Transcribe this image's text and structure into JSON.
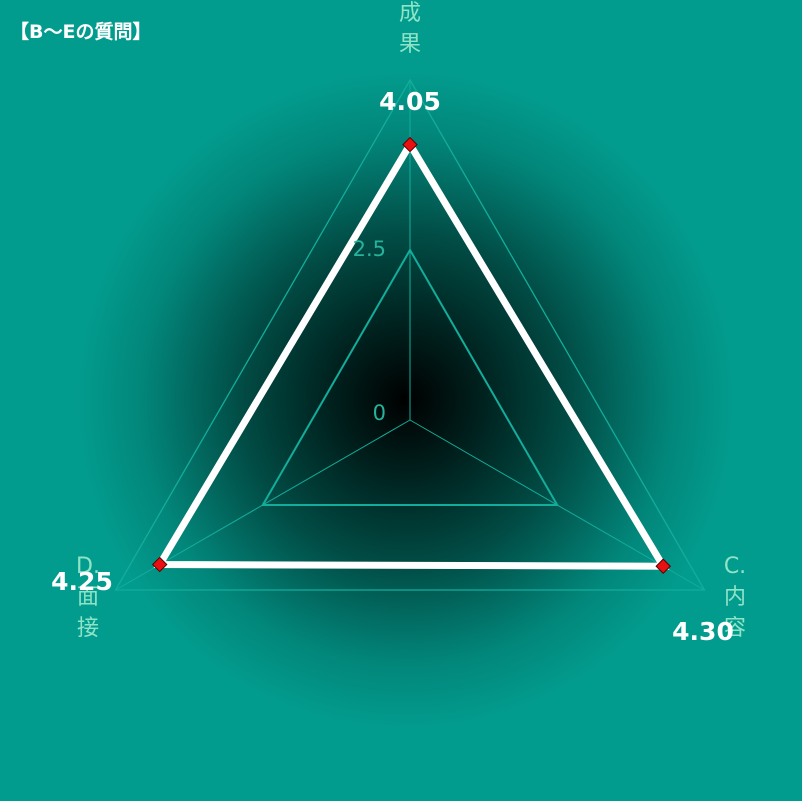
{
  "chart_data": {
    "type": "radar",
    "title": "【B〜Eの質問】",
    "axes": [
      {
        "name": "成果",
        "label_lines": [
          "成",
          "果"
        ]
      },
      {
        "name": "C.内容",
        "label_lines": [
          "C.",
          "内",
          "容"
        ]
      },
      {
        "name": "D.面接",
        "label_lines": [
          "D.",
          "面",
          "接"
        ]
      }
    ],
    "ticks": [
      0,
      2.5
    ],
    "range": [
      0,
      5
    ],
    "series": [
      {
        "values": [
          4.05,
          4.3,
          4.25
        ],
        "value_labels": [
          "4.05",
          "4.30",
          "4.25"
        ]
      }
    ],
    "colors": {
      "background": "#029c8e",
      "center": "#000000",
      "grid": "#13ad9c",
      "series_line": "#ffffff",
      "marker": "#e81010",
      "axis_label": "#8fe3c6",
      "tick_label": "#26b39b"
    }
  }
}
